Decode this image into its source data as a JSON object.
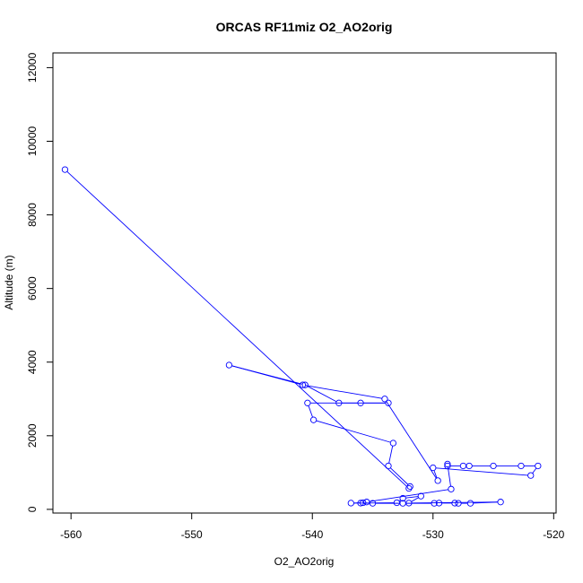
{
  "chart_data": {
    "type": "line",
    "title": "ORCAS RF11miz O2_AO2orig",
    "xlabel": "O2_AO2orig",
    "ylabel": "Altitude (m)",
    "xlim": [
      -561.5,
      -519.8
    ],
    "ylim": [
      -100,
      12400
    ],
    "xticks": [
      -560,
      -550,
      -540,
      -530,
      -520
    ],
    "yticks": [
      0,
      2000,
      4000,
      6000,
      8000,
      10000,
      12000
    ],
    "grid": false,
    "colors": {
      "series": "#0000ff",
      "axis": "#000000"
    },
    "series": [
      {
        "marker": "open-circle",
        "x": [
          -560.5,
          -532.0,
          -531.9,
          -533.7,
          -533.3,
          -539.9,
          -540.4,
          -533.7,
          -536.0,
          -537.8,
          -540.6,
          -546.9,
          -540.8,
          -534.0,
          -529.6,
          -530.0,
          -521.9,
          -521.3,
          -522.7,
          -525.0,
          -527.0,
          -527.5,
          -528.8,
          -528.8,
          -528.5,
          -535.5,
          -535.8,
          -536.8,
          -533.0,
          -532.5,
          -531.0,
          -532.0,
          -524.4,
          -526.9,
          -527.9,
          -528.2,
          -529.5,
          -529.9,
          -532.5,
          -535.0,
          -536.0
        ],
        "y": [
          9230,
          570,
          620,
          1180,
          1800,
          2430,
          2890,
          2890,
          2890,
          2890,
          3380,
          3920,
          3380,
          3000,
          780,
          1130,
          920,
          1180,
          1180,
          1180,
          1180,
          1180,
          1180,
          1230,
          550,
          200,
          180,
          170,
          180,
          300,
          360,
          170,
          200,
          165,
          165,
          170,
          170,
          165,
          165,
          165,
          170
        ]
      }
    ]
  }
}
